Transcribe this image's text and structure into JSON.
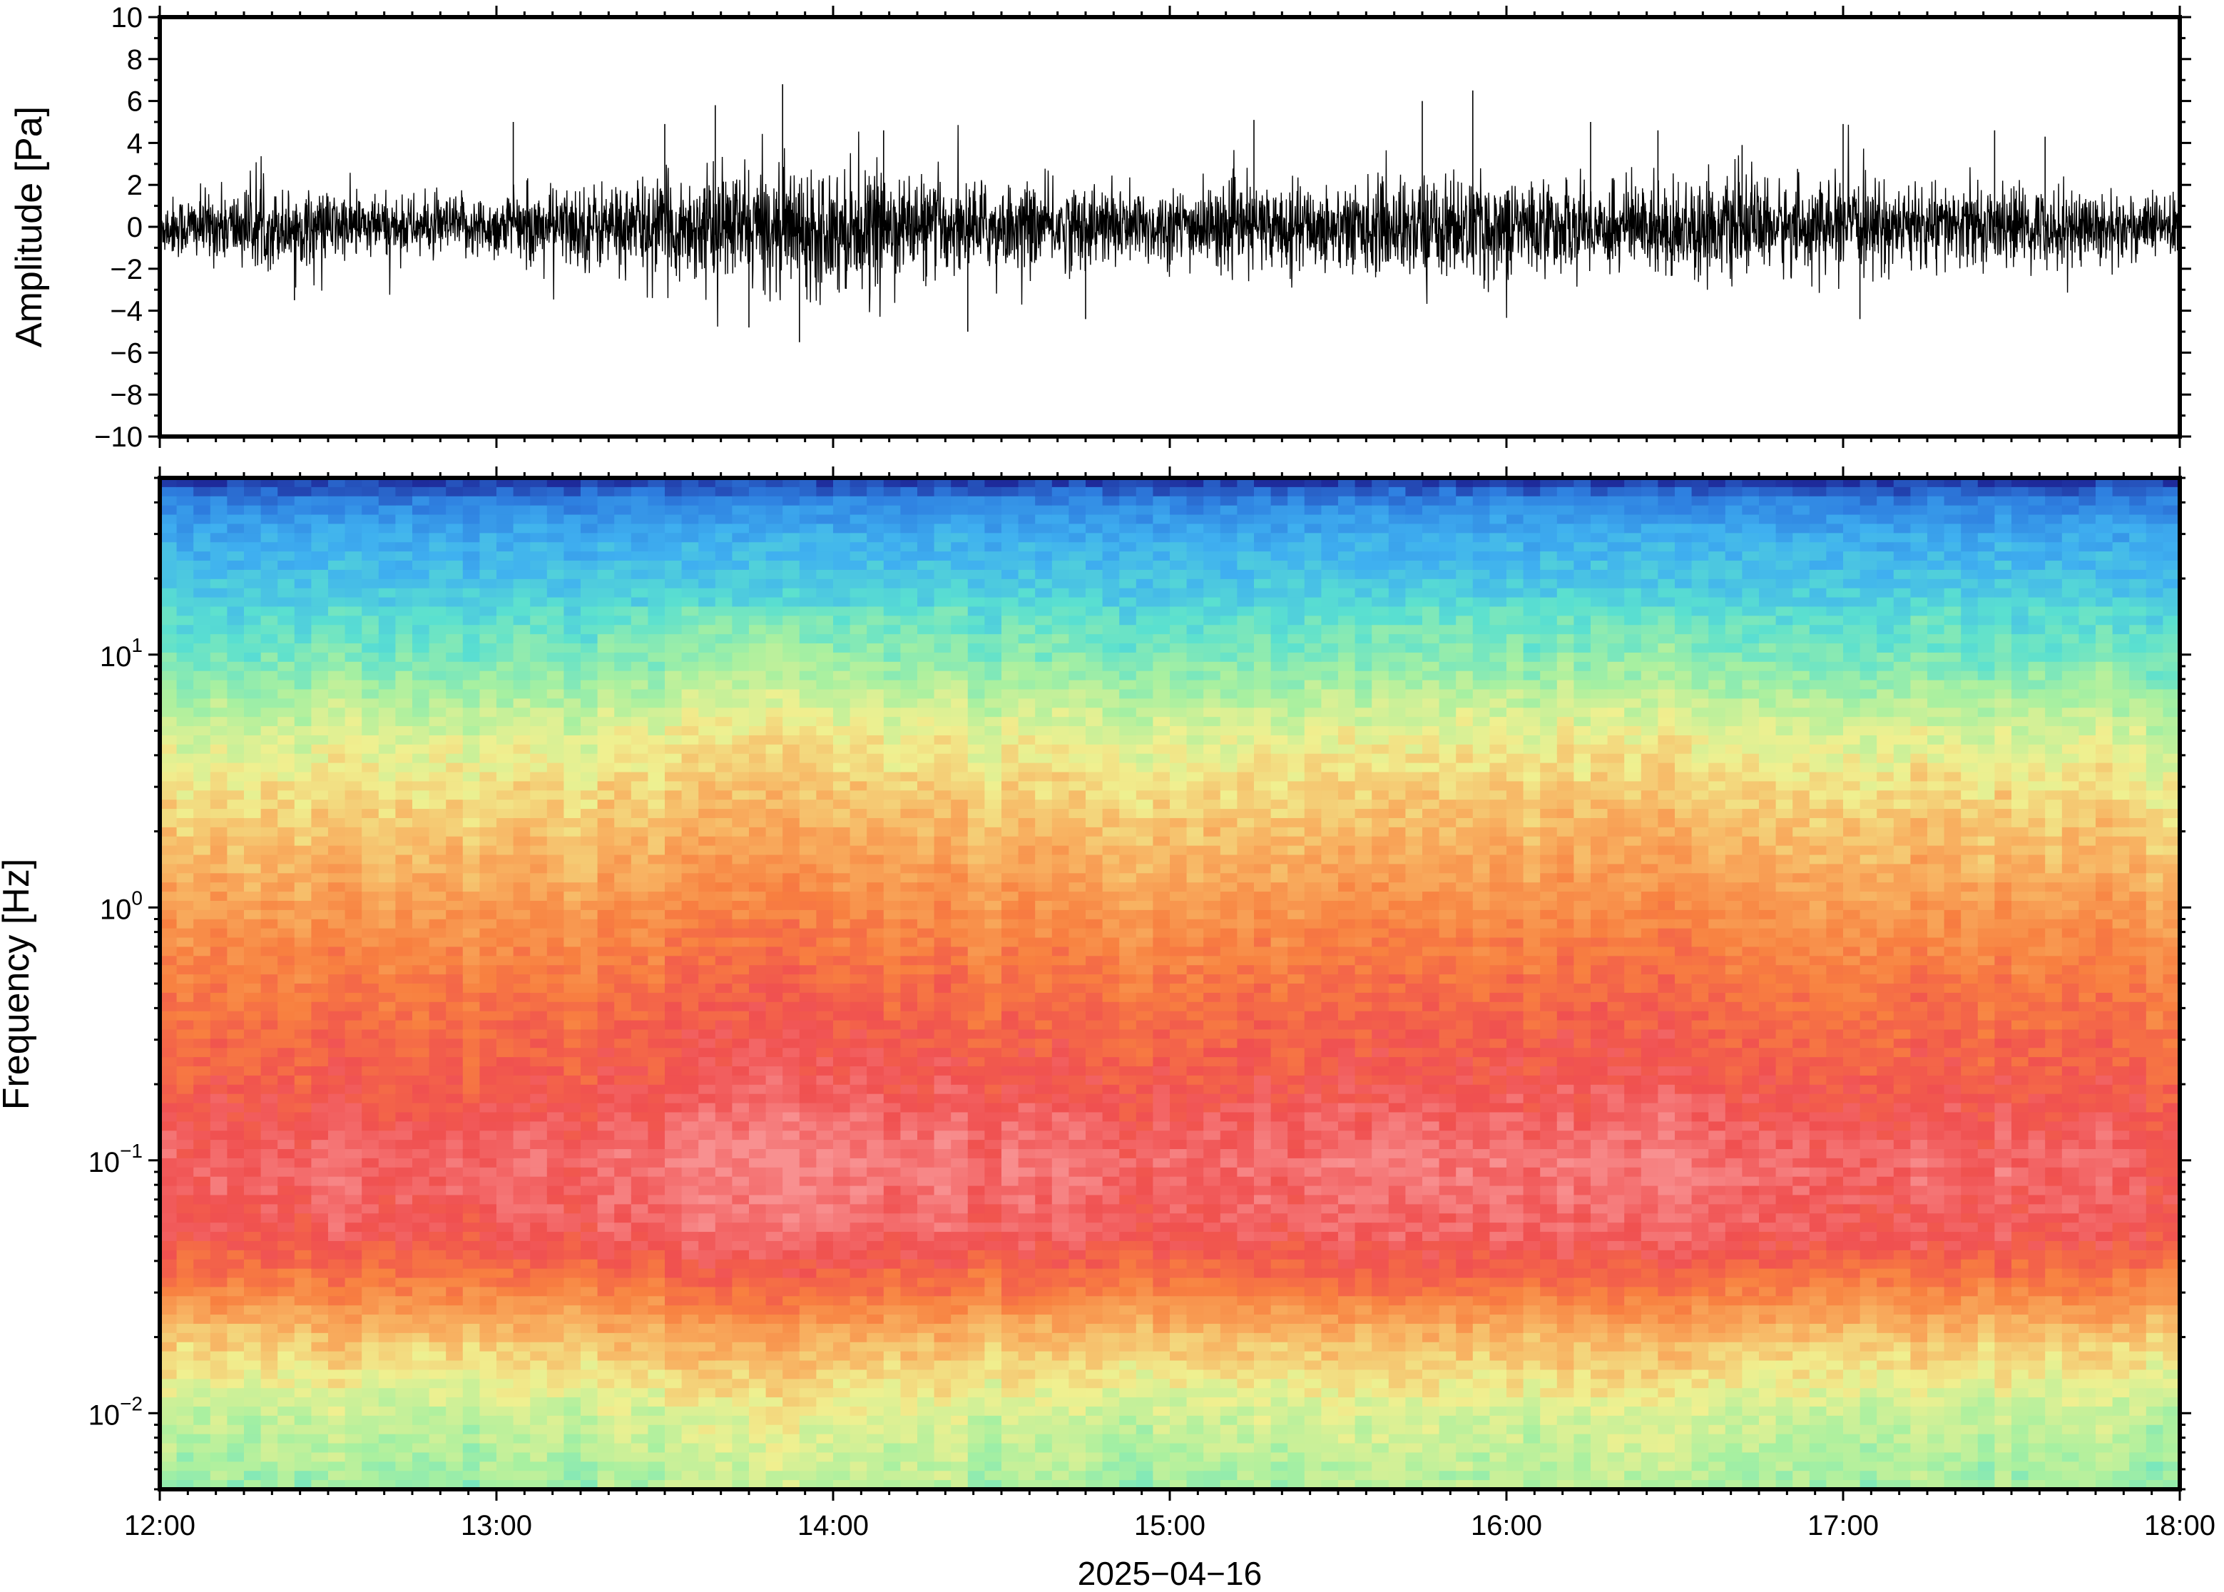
{
  "chart_data": [
    {
      "type": "line",
      "panel": "waveform",
      "ylabel": "Amplitude [Pa]",
      "ylim": [
        -10,
        10
      ],
      "yticks": [
        10,
        8,
        6,
        4,
        2,
        0,
        -2,
        -4,
        -6,
        -8,
        -10
      ],
      "ytick_labels": [
        "10",
        "8",
        "6",
        "4",
        "2",
        "0",
        "−2",
        "−4",
        "−6",
        "−8",
        "−10"
      ],
      "xlim": [
        "12:00",
        "18:00"
      ],
      "color": "#000000",
      "envelope": {
        "x_hours": [
          12.0,
          12.25,
          12.5,
          12.75,
          13.0,
          13.25,
          13.5,
          13.75,
          14.0,
          14.25,
          14.5,
          14.75,
          15.0,
          15.25,
          15.5,
          15.75,
          16.0,
          16.25,
          16.5,
          16.75,
          17.0,
          17.25,
          17.5,
          17.75,
          18.0
        ],
        "typical_abs": [
          0.9,
          1.2,
          1.1,
          0.9,
          1.0,
          1.3,
          1.5,
          1.8,
          1.9,
          1.5,
          1.3,
          1.3,
          1.2,
          1.3,
          1.3,
          1.6,
          1.5,
          1.3,
          1.5,
          1.4,
          1.3,
          1.3,
          1.2,
          1.2,
          0.9
        ]
      },
      "peaks": [
        {
          "x_hours": 12.4,
          "y": -3.5
        },
        {
          "x_hours": 13.05,
          "y": 5.0
        },
        {
          "x_hours": 13.5,
          "y": 4.9
        },
        {
          "x_hours": 13.65,
          "y": 5.8
        },
        {
          "x_hours": 13.75,
          "y": -4.8
        },
        {
          "x_hours": 13.85,
          "y": 6.8
        },
        {
          "x_hours": 13.9,
          "y": -5.5
        },
        {
          "x_hours": 14.15,
          "y": 4.6
        },
        {
          "x_hours": 14.4,
          "y": -5.0
        },
        {
          "x_hours": 14.75,
          "y": -4.4
        },
        {
          "x_hours": 15.25,
          "y": 5.1
        },
        {
          "x_hours": 15.75,
          "y": 6.0
        },
        {
          "x_hours": 15.9,
          "y": 6.5
        },
        {
          "x_hours": 16.25,
          "y": 5.0
        },
        {
          "x_hours": 16.45,
          "y": 4.6
        },
        {
          "x_hours": 16.7,
          "y": 3.9
        },
        {
          "x_hours": 17.0,
          "y": 4.9
        },
        {
          "x_hours": 17.05,
          "y": -4.4
        },
        {
          "x_hours": 17.45,
          "y": 4.6
        },
        {
          "x_hours": 17.6,
          "y": 4.3
        }
      ]
    },
    {
      "type": "heatmap",
      "panel": "spectrogram",
      "ylabel": "Frequency [Hz]",
      "yscale": "log",
      "ylim": [
        0.005,
        50
      ],
      "yticks": [
        10,
        1,
        0.1,
        0.01
      ],
      "ytick_labels": [
        {
          "base": "10",
          "exp": "1"
        },
        {
          "base": "10",
          "exp": "0"
        },
        {
          "base": "10",
          "exp": "−1"
        },
        {
          "base": "10",
          "exp": "−2"
        }
      ],
      "xlabel": "2025−04−16",
      "xlim": [
        "12:00",
        "18:00"
      ],
      "xticks": [
        "12:00",
        "13:00",
        "14:00",
        "15:00",
        "16:00",
        "17:00",
        "18:00"
      ],
      "colormap": [
        "#1e2a9a",
        "#2e7fe0",
        "#3fb0f0",
        "#5ae0d0",
        "#a8f0a0",
        "#f0f090",
        "#f8b060",
        "#f88040",
        "#f05050",
        "#f89090"
      ],
      "profile": {
        "freq_hz": [
          50,
          40,
          30,
          20,
          10,
          5,
          2,
          1,
          0.5,
          0.2,
          0.1,
          0.05,
          0.03,
          0.02,
          0.01,
          0.005
        ],
        "level": [
          0.0,
          0.12,
          0.2,
          0.26,
          0.36,
          0.5,
          0.62,
          0.7,
          0.78,
          0.85,
          0.92,
          0.88,
          0.75,
          0.62,
          0.48,
          0.42
        ]
      },
      "activity": {
        "x_hours": [
          12.0,
          12.5,
          13.0,
          13.5,
          13.9,
          14.2,
          14.5,
          15.0,
          15.5,
          15.75,
          16.0,
          16.5,
          17.0,
          17.5,
          18.0
        ],
        "gain": [
          0.0,
          0.02,
          0.0,
          0.04,
          0.07,
          0.05,
          0.03,
          0.02,
          0.03,
          0.06,
          0.04,
          0.05,
          0.02,
          0.02,
          0.0
        ]
      }
    }
  ]
}
